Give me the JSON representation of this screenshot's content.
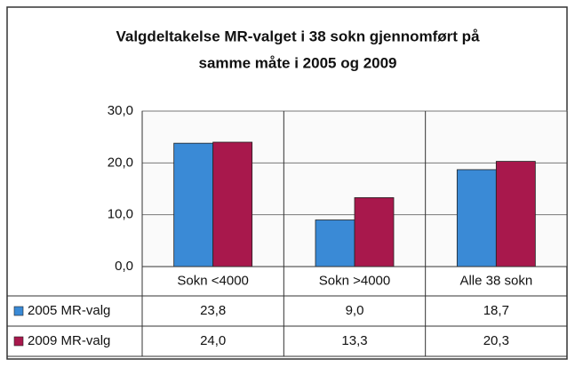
{
  "chart_data": {
    "type": "bar",
    "title": [
      "Valgdeltakelse MR-valget i 38 sokn gjennomført på",
      "samme måte i 2005 og 2009"
    ],
    "categories": [
      "Sokn <4000",
      "Sokn >4000",
      "Alle 38 sokn"
    ],
    "series": [
      {
        "name": "2005 MR-valg",
        "color": "#3a8ad6",
        "values": [
          23.8,
          9.0,
          18.7
        ],
        "value_labels": [
          "23,8",
          "9,0",
          "18,7"
        ]
      },
      {
        "name": "2009 MR-valg",
        "color": "#a8184c",
        "values": [
          24.0,
          13.3,
          20.3
        ],
        "value_labels": [
          "24,0",
          "13,3",
          "20,3"
        ]
      }
    ],
    "ylim": [
      0,
      30
    ],
    "yticks": [
      {
        "value": 0,
        "label": "0,0"
      },
      {
        "value": 10,
        "label": "10,0"
      },
      {
        "value": 20,
        "label": "20,0"
      },
      {
        "value": 30,
        "label": "30,0"
      }
    ],
    "grid": true
  }
}
